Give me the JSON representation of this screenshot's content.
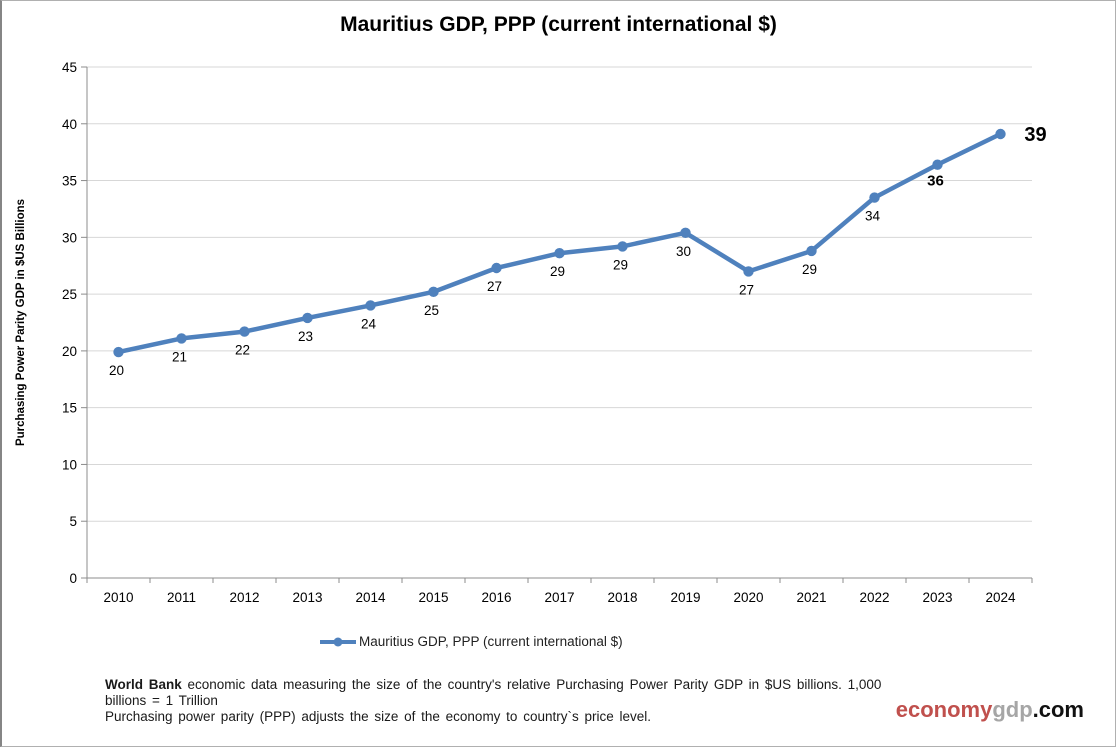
{
  "chart_data": {
    "type": "line",
    "title": "Mauritius GDP, PPP (current international $)",
    "xlabel": "",
    "ylabel": "Purchasing Power Parity GDP in $US Billions",
    "legend": "Mauritius GDP, PPP (current international $)",
    "legend_position": "bottom",
    "grid": true,
    "categories": [
      "2010",
      "2011",
      "2012",
      "2013",
      "2014",
      "2015",
      "2016",
      "2017",
      "2018",
      "2019",
      "2020",
      "2021",
      "2022",
      "2023",
      "2024"
    ],
    "values": [
      19.9,
      21.1,
      21.7,
      22.9,
      24.0,
      25.2,
      27.3,
      28.6,
      29.2,
      30.4,
      27.0,
      28.8,
      33.5,
      36.4,
      39.1
    ],
    "point_labels": [
      {
        "text": "20"
      },
      {
        "text": "21"
      },
      {
        "text": "22"
      },
      {
        "text": "23"
      },
      {
        "text": "24"
      },
      {
        "text": "25"
      },
      {
        "text": "27"
      },
      {
        "text": "29"
      },
      {
        "text": "29"
      },
      {
        "text": "30"
      },
      {
        "text": "27"
      },
      {
        "text": "29"
      },
      {
        "text": "34"
      },
      {
        "text": "36",
        "bold": true
      },
      {
        "text": "39",
        "bold": true,
        "placement": "right"
      }
    ],
    "ylim": [
      0,
      45
    ],
    "ytick_step": 5,
    "line_color": "#4F81BD",
    "grid_color": "#D7D7D7",
    "axis_color": "#8C8C8C",
    "label_color": "#000000"
  },
  "footer": {
    "line1_bold": "World Bank",
    "line1_rest": " economic data  measuring the size of the country's relative  Purchasing Power Parity GDP in $US billions. 1,000 billions = 1 Trillion",
    "line2": "Purchasing power parity (PPP) adjusts the size of the economy to country`s price level."
  },
  "logo": {
    "part1": "economy",
    "part2": "gdp",
    "part3": ".com",
    "color1": "#C0504D",
    "color2": "#A6A6A6",
    "color3": "#111111"
  }
}
